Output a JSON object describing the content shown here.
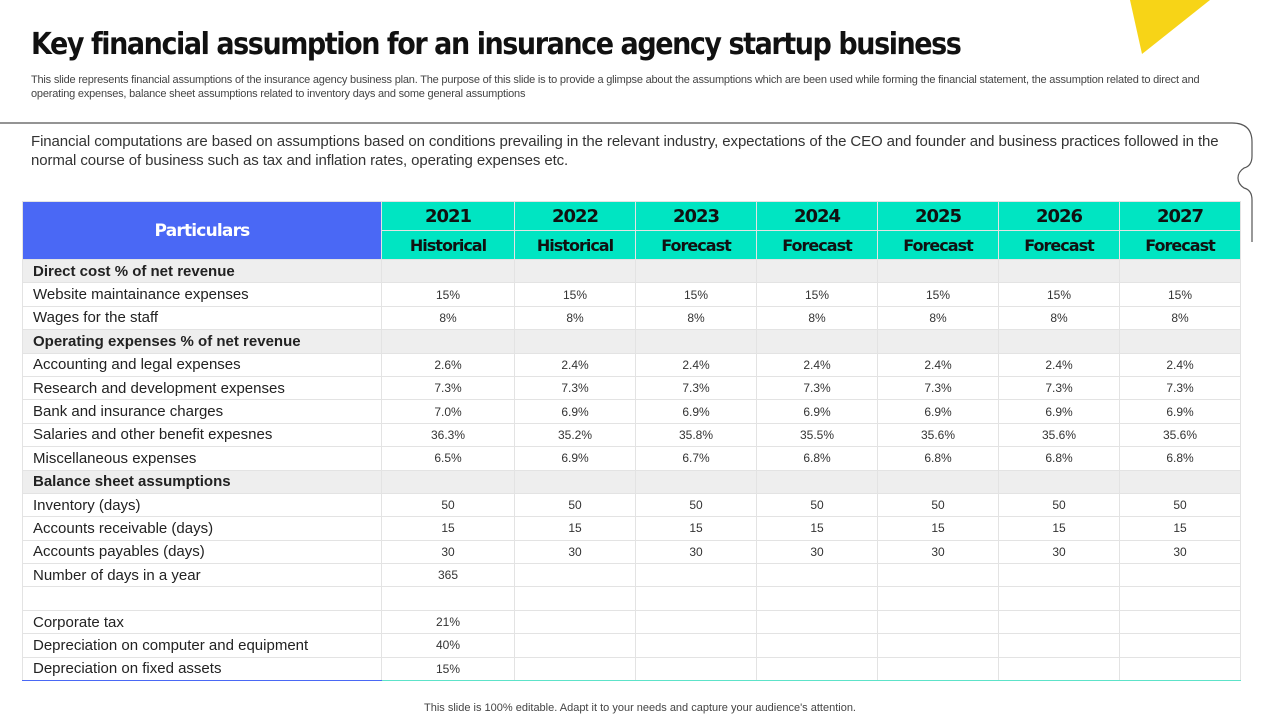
{
  "title": "Key financial assumption for an insurance agency startup business",
  "subtitle": "This slide represents financial assumptions of the insurance agency business plan. The purpose of this slide is to provide a glimpse about the assumptions which are been used while forming the financial statement, the assumption related to direct and operating expenses, balance sheet assumptions related to inventory days and some general assumptions",
  "callout": "Financial computations are based on assumptions based on conditions prevailing in the relevant industry, expectations of the CEO and founder and business practices followed in the normal course of business such as tax and inflation rates, operating expenses etc.",
  "colors": {
    "accent_yellow": "#f7d417",
    "header_blue": "#4a68f5",
    "header_teal": "#00e5c2"
  },
  "table": {
    "particulars_label": "Particulars",
    "years": [
      "2021",
      "2022",
      "2023",
      "2024",
      "2025",
      "2026",
      "2027"
    ],
    "types": [
      "Historical",
      "Historical",
      "Forecast",
      "Forecast",
      "Forecast",
      "Forecast",
      "Forecast"
    ],
    "rows": [
      {
        "label": "Direct cost % of net revenue",
        "section": true,
        "values": [
          "",
          "",
          "",
          "",
          "",
          "",
          ""
        ]
      },
      {
        "label": "Website maintainance expenses",
        "section": false,
        "values": [
          "15%",
          "15%",
          "15%",
          "15%",
          "15%",
          "15%",
          "15%"
        ]
      },
      {
        "label": "Wages for the staff",
        "section": false,
        "values": [
          "8%",
          "8%",
          "8%",
          "8%",
          "8%",
          "8%",
          "8%"
        ]
      },
      {
        "label": "Operating expenses % of net revenue",
        "section": true,
        "values": [
          "",
          "",
          "",
          "",
          "",
          "",
          ""
        ]
      },
      {
        "label": "Accounting and legal expenses",
        "section": false,
        "values": [
          "2.6%",
          "2.4%",
          "2.4%",
          "2.4%",
          "2.4%",
          "2.4%",
          "2.4%"
        ]
      },
      {
        "label": "Research and development expenses",
        "section": false,
        "values": [
          "7.3%",
          "7.3%",
          "7.3%",
          "7.3%",
          "7.3%",
          "7.3%",
          "7.3%"
        ]
      },
      {
        "label": "Bank and insurance charges",
        "section": false,
        "values": [
          "7.0%",
          "6.9%",
          "6.9%",
          "6.9%",
          "6.9%",
          "6.9%",
          "6.9%"
        ]
      },
      {
        "label": "Salaries and other benefit expesnes",
        "section": false,
        "values": [
          "36.3%",
          "35.2%",
          "35.8%",
          "35.5%",
          "35.6%",
          "35.6%",
          "35.6%"
        ]
      },
      {
        "label": "Miscellaneous expenses",
        "section": false,
        "values": [
          "6.5%",
          "6.9%",
          "6.7%",
          "6.8%",
          "6.8%",
          "6.8%",
          "6.8%"
        ]
      },
      {
        "label": "Balance sheet assumptions",
        "section": true,
        "values": [
          "",
          "",
          "",
          "",
          "",
          "",
          ""
        ]
      },
      {
        "label": "Inventory  (days)",
        "section": false,
        "values": [
          "50",
          "50",
          "50",
          "50",
          "50",
          "50",
          "50"
        ]
      },
      {
        "label": "Accounts receivable (days)",
        "section": false,
        "values": [
          "15",
          "15",
          "15",
          "15",
          "15",
          "15",
          "15"
        ]
      },
      {
        "label": "Accounts payables (days)",
        "section": false,
        "values": [
          "30",
          "30",
          "30",
          "30",
          "30",
          "30",
          "30"
        ]
      },
      {
        "label": "Number of days in a year",
        "section": false,
        "values": [
          "365",
          "",
          "",
          "",
          "",
          "",
          ""
        ]
      },
      {
        "label": "",
        "section": false,
        "values": [
          "",
          "",
          "",
          "",
          "",
          "",
          ""
        ]
      },
      {
        "label": "Corporate tax",
        "section": false,
        "values": [
          "21%",
          "",
          "",
          "",
          "",
          "",
          ""
        ]
      },
      {
        "label": "Depreciation on computer and equipment",
        "section": false,
        "values": [
          "40%",
          "",
          "",
          "",
          "",
          "",
          ""
        ]
      },
      {
        "label": "Depreciation on fixed assets",
        "section": false,
        "values": [
          "15%",
          "",
          "",
          "",
          "",
          "",
          ""
        ]
      }
    ]
  },
  "footer": "This slide is 100% editable. Adapt it to your needs and capture your audience's attention."
}
